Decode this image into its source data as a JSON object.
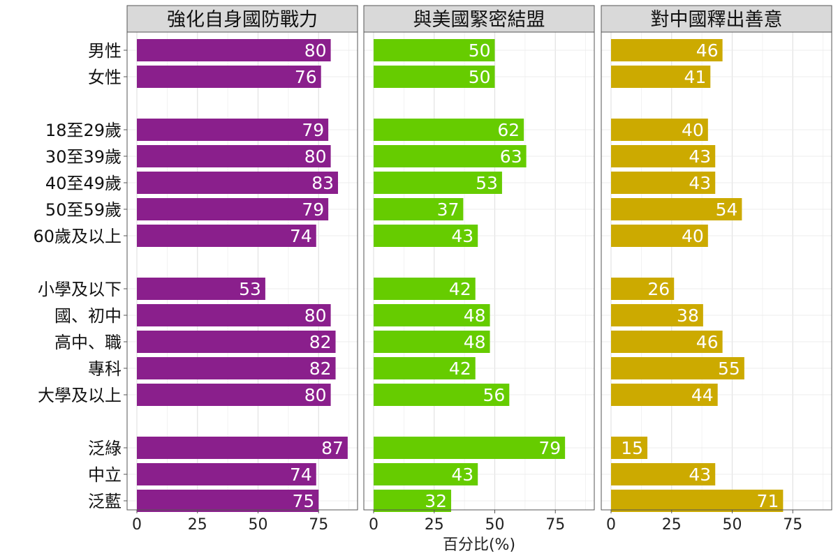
{
  "chart_data": {
    "type": "bar",
    "orientation": "horizontal",
    "categories": [
      "男性",
      "女性",
      "18至29歲",
      "30至39歲",
      "40至49歲",
      "50至59歲",
      "60歲及以上",
      "小學及以下",
      "國、初中",
      "高中、職",
      "專科",
      "大學及以上",
      "泛綠",
      "中立",
      "泛藍"
    ],
    "groups": [
      2,
      5,
      5,
      3
    ],
    "panels": [
      {
        "title": "強化自身國防戰力",
        "color": "#8a1f8c",
        "values": [
          80,
          76,
          79,
          80,
          83,
          79,
          74,
          53,
          80,
          82,
          82,
          80,
          87,
          74,
          75
        ]
      },
      {
        "title": "與美國緊密結盟",
        "color": "#66cc00",
        "values": [
          50,
          50,
          62,
          63,
          53,
          37,
          43,
          42,
          48,
          48,
          42,
          56,
          79,
          43,
          32
        ]
      },
      {
        "title": "對中國釋出善意",
        "color": "#ccaa00",
        "values": [
          46,
          41,
          40,
          43,
          43,
          54,
          40,
          26,
          38,
          46,
          55,
          44,
          15,
          43,
          71
        ]
      }
    ],
    "xticks": [
      0,
      25,
      50,
      75
    ],
    "xlim": [
      0,
      90
    ],
    "xlabel": "百分比(%)",
    "ylabel": "",
    "grid": true
  }
}
